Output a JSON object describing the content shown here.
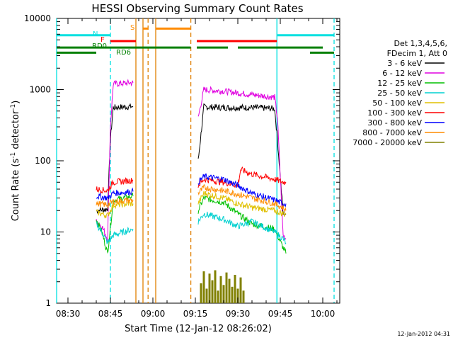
{
  "chart_data": {
    "type": "line",
    "title": "HESSI Observing Summary Count Rates",
    "xlabel": "Start Time (12-Jan-12 08:26:02)",
    "ylabel": "Count Rate (s",
    "ylabel_sup1": "-1",
    "ylabel_mid": " detector",
    "ylabel_sup2": "-1",
    "ylabel_end": ")",
    "timestamp": "12-Jan-2012 04:31",
    "x_range_min": [
      26,
      126
    ],
    "y_range": [
      1,
      10000
    ],
    "y_scale": "log",
    "x_ticks": [
      "08:30",
      "08:45",
      "09:00",
      "09:15",
      "09:30",
      "09:45",
      "10:00"
    ],
    "x_tick_values": [
      30,
      45,
      60,
      75,
      90,
      105,
      120
    ],
    "y_ticks": [
      "1",
      "10",
      "100",
      "1000",
      "10000"
    ],
    "y_tick_values": [
      1,
      10,
      100,
      1000,
      10000
    ],
    "legend_header": [
      "Det 1,3,4,5,6,",
      "FDecim 1, Att 0"
    ],
    "series": [
      {
        "name": "3 - 6 keV",
        "color": "#000000",
        "segments": [
          {
            "x": [
              40,
              44,
              45,
              46,
              53
            ],
            "y": [
              20,
              21,
              200,
              560,
              580
            ]
          },
          {
            "x": [
              76,
              78,
              85,
              95,
              103,
              104,
              106,
              107
            ],
            "y": [
              100,
              570,
              560,
              560,
              540,
              200,
              18,
              18
            ]
          }
        ]
      },
      {
        "name": "6 - 12 keV",
        "color": "#e000e0",
        "segments": [
          {
            "x": [
              40,
              42,
              44,
              45,
              46,
              53
            ],
            "y": [
              14,
              12,
              8,
              300,
              1200,
              1250
            ]
          },
          {
            "x": [
              76,
              78,
              85,
              95,
              103,
              104,
              106,
              107
            ],
            "y": [
              400,
              1000,
              950,
              850,
              780,
              400,
              9,
              8
            ]
          }
        ]
      },
      {
        "name": "12 - 25 keV",
        "color": "#00c000",
        "segments": [
          {
            "x": [
              40,
              42,
              44,
              46,
              53
            ],
            "y": [
              15,
              10,
              5,
              28,
              32
            ]
          },
          {
            "x": [
              76,
              78,
              85,
              90,
              95,
              103,
              106,
              107
            ],
            "y": [
              20,
              30,
              26,
              18,
              13,
              11,
              6,
              5
            ]
          }
        ]
      },
      {
        "name": "25 - 50 keV",
        "color": "#00d0d0",
        "segments": [
          {
            "x": [
              40,
              42,
              44,
              46,
              53
            ],
            "y": [
              13,
              10,
              7,
              9,
              11
            ]
          },
          {
            "x": [
              76,
              78,
              85,
              90,
              95,
              103,
              106,
              107
            ],
            "y": [
              14,
              18,
              15,
              12,
              14,
              10,
              8,
              7
            ]
          }
        ]
      },
      {
        "name": "50 - 100 keV",
        "color": "#e0c000",
        "segments": [
          {
            "x": [
              40,
              44,
              46,
              53
            ],
            "y": [
              19,
              17,
              24,
              25
            ]
          },
          {
            "x": [
              76,
              78,
              85,
              90,
              95,
              103,
              106,
              107
            ],
            "y": [
              25,
              35,
              30,
              25,
              22,
              20,
              18,
              18
            ]
          }
        ]
      },
      {
        "name": "100 - 300 keV",
        "color": "#ff0000",
        "segments": [
          {
            "x": [
              40,
              44,
              46,
              53
            ],
            "y": [
              40,
              38,
              50,
              53
            ]
          },
          {
            "x": [
              76,
              78,
              85,
              90,
              91,
              95,
              103,
              106,
              107
            ],
            "y": [
              45,
              55,
              50,
              45,
              75,
              65,
              55,
              50,
              50
            ]
          }
        ]
      },
      {
        "name": "300 - 800 keV",
        "color": "#0000ff",
        "segments": [
          {
            "x": [
              40,
              44,
              46,
              53
            ],
            "y": [
              32,
              30,
              35,
              37
            ]
          },
          {
            "x": [
              76,
              78,
              85,
              90,
              95,
              103,
              106,
              107
            ],
            "y": [
              50,
              60,
              55,
              45,
              35,
              28,
              25,
              25
            ]
          }
        ]
      },
      {
        "name": "800 - 7000 keV",
        "color": "#ff8c00",
        "segments": [
          {
            "x": [
              40,
              44,
              46,
              53
            ],
            "y": [
              25,
              24,
              27,
              28
            ]
          },
          {
            "x": [
              76,
              78,
              85,
              90,
              95,
              103,
              106,
              107
            ],
            "y": [
              35,
              42,
              38,
              34,
              30,
              25,
              22,
              20
            ]
          }
        ]
      },
      {
        "name": "7000 - 20000 keV",
        "color": "#808000",
        "segments": [
          {
            "x": [
              77,
              78,
              79,
              80,
              81,
              82,
              83,
              84,
              85,
              86,
              87,
              88,
              89,
              90,
              91,
              92
            ],
            "y": [
              1.9,
              2.8,
              1.6,
              2.6,
              2.1,
              2.9,
              1.5,
              2.4,
              1.8,
              2.7,
              2.2,
              1.7,
              2.5,
              1.6,
              2.3,
              1.5
            ]
          }
        ]
      }
    ],
    "vertical_lines": [
      {
        "x": 26,
        "color": "#00e0e0",
        "style": "solid"
      },
      {
        "x": 45,
        "color": "#00e0e0",
        "style": "dashed"
      },
      {
        "x": 103.8,
        "color": "#00e0e0",
        "style": "solid"
      },
      {
        "x": 124,
        "color": "#00e0e0",
        "style": "dashed"
      },
      {
        "x": 54,
        "color": "#e08000",
        "style": "solid"
      },
      {
        "x": 56.5,
        "color": "#e08000",
        "style": "solid"
      },
      {
        "x": 58.3,
        "color": "#e08000",
        "style": "dashed"
      },
      {
        "x": 61,
        "color": "#e08000",
        "style": "solid"
      },
      {
        "x": 73.4,
        "color": "#e08000",
        "style": "dashed"
      }
    ],
    "flag_bars": [
      {
        "label": "N",
        "color": "#00e0e0",
        "y": 5800,
        "segments": [
          [
            26,
            45
          ],
          [
            104,
            124
          ]
        ]
      },
      {
        "label": "S",
        "color": "#ff8c00",
        "y": 7200,
        "segments": [
          [
            56.5,
            58.3
          ],
          [
            61,
            73.4
          ]
        ]
      },
      {
        "label": "F",
        "color": "#ff0000",
        "y": 4800,
        "segments": [
          [
            45,
            54
          ],
          [
            75.5,
            103.8
          ]
        ]
      },
      {
        "label": "RD0",
        "color": "#008000",
        "y": 3900,
        "segments": [
          [
            26,
            73.4
          ],
          [
            75.5,
            86.5
          ],
          [
            90,
            120
          ]
        ]
      },
      {
        "label": "RD6",
        "color": "#008000",
        "y": 3300,
        "segments": [
          [
            26,
            40
          ],
          [
            115.5,
            124
          ]
        ]
      }
    ]
  }
}
